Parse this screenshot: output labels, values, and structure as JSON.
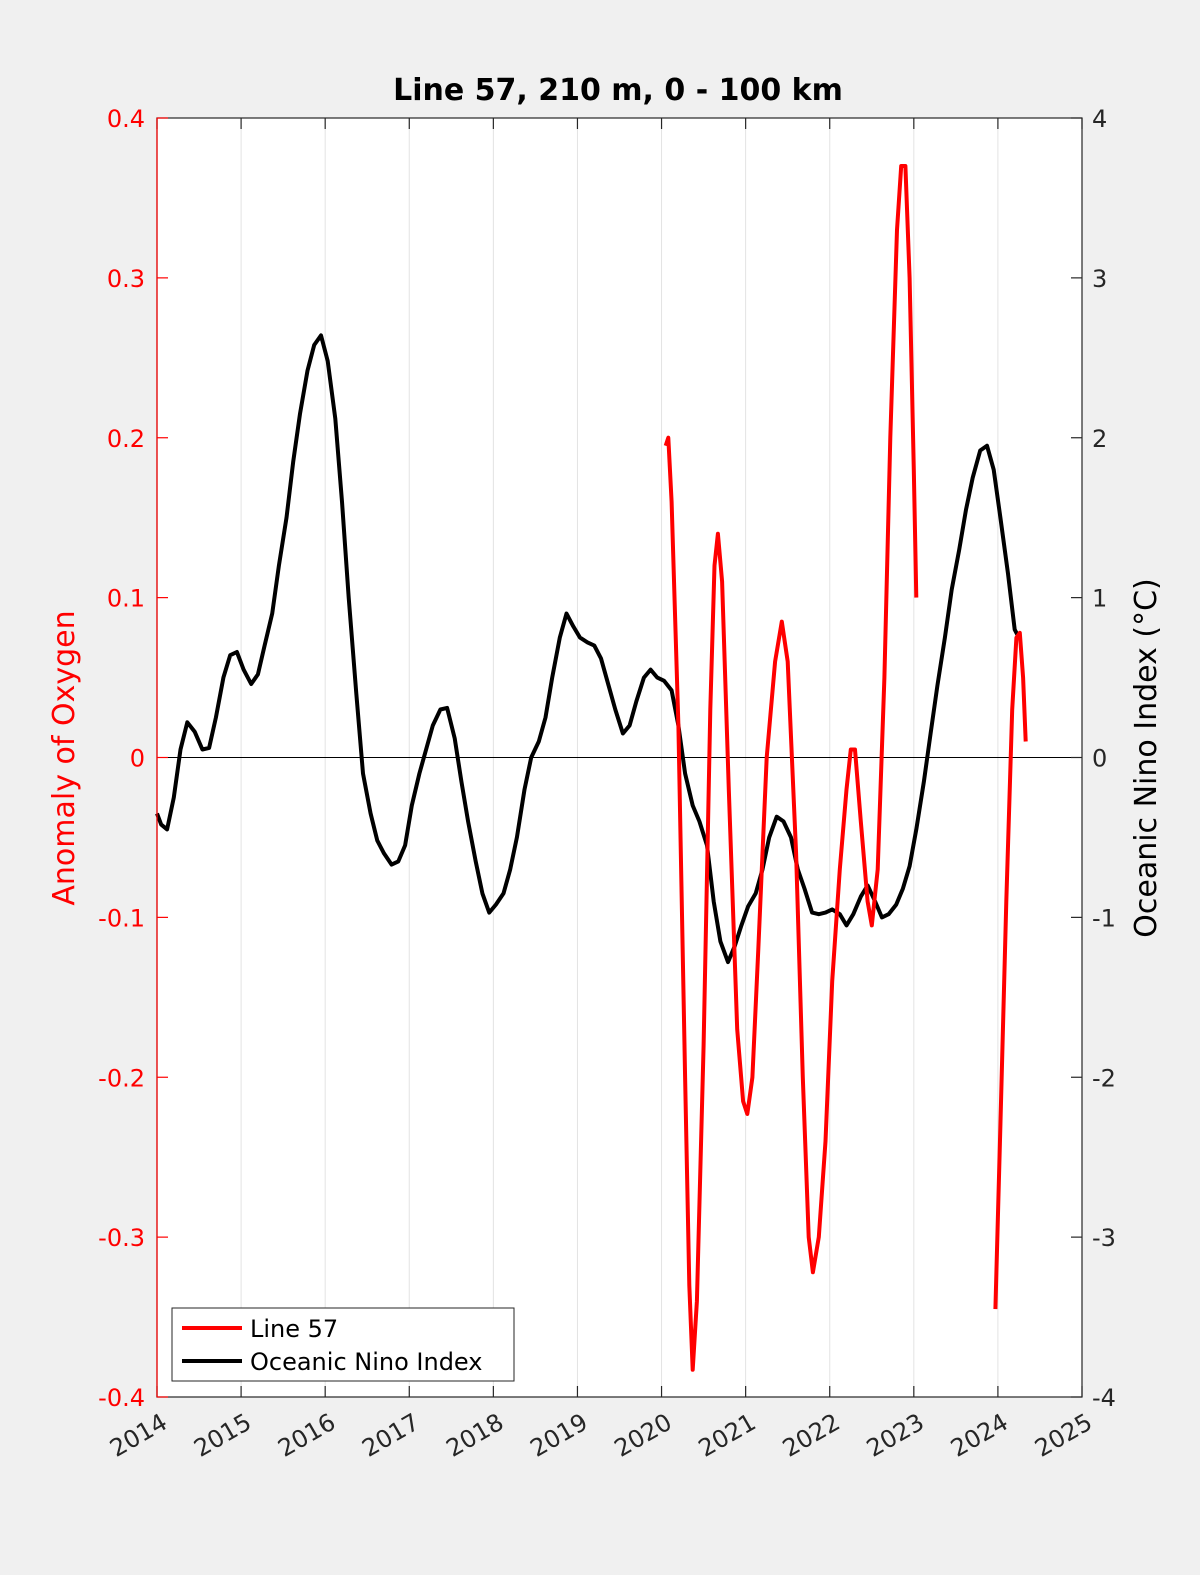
{
  "chart_data": {
    "type": "line",
    "title": "Line 57, 210 m, 0 - 100 km",
    "ylabel_left": "Anomaly of Oxygen",
    "ylabel_right": "Oceanic Nino Index (°C)",
    "xlim": [
      2014,
      2025
    ],
    "ylim_left": [
      -0.4,
      0.4
    ],
    "ylim_right": [
      -4,
      4
    ],
    "x_ticks": [
      "2014",
      "2015",
      "2016",
      "2017",
      "2018",
      "2019",
      "2020",
      "2021",
      "2022",
      "2023",
      "2024",
      "2025"
    ],
    "y_ticks_left": [
      "-0.4",
      "-0.3",
      "-0.2",
      "-0.1",
      "0",
      "0.1",
      "0.2",
      "0.3",
      "0.4"
    ],
    "y_ticks_right": [
      "-4",
      "-3",
      "-2",
      "-1",
      "0",
      "1",
      "2",
      "3",
      "4"
    ],
    "x_grid": true,
    "zero_line": true,
    "legend_position": "bottom-left",
    "colors": {
      "line57": "#ff0000",
      "oni": "#000000"
    },
    "series": [
      {
        "name": "Line 57",
        "axis": "left",
        "segments": [
          [
            [
              2020.05,
              0.195
            ],
            [
              2020.08,
              0.2
            ],
            [
              2020.12,
              0.16
            ],
            [
              2020.2,
              0.02
            ],
            [
              2020.28,
              -0.2
            ],
            [
              2020.33,
              -0.33
            ],
            [
              2020.37,
              -0.383
            ],
            [
              2020.42,
              -0.34
            ],
            [
              2020.5,
              -0.18
            ],
            [
              2020.58,
              0.03
            ],
            [
              2020.63,
              0.12
            ],
            [
              2020.67,
              0.14
            ],
            [
              2020.72,
              0.11
            ],
            [
              2020.8,
              -0.02
            ],
            [
              2020.9,
              -0.17
            ],
            [
              2020.97,
              -0.215
            ],
            [
              2021.02,
              -0.223
            ],
            [
              2021.08,
              -0.2
            ],
            [
              2021.15,
              -0.12
            ],
            [
              2021.25,
              0.0
            ],
            [
              2021.35,
              0.06
            ],
            [
              2021.43,
              0.085
            ],
            [
              2021.5,
              0.06
            ],
            [
              2021.6,
              -0.06
            ],
            [
              2021.68,
              -0.2
            ],
            [
              2021.75,
              -0.3
            ],
            [
              2021.8,
              -0.322
            ],
            [
              2021.87,
              -0.3
            ],
            [
              2021.95,
              -0.24
            ],
            [
              2022.03,
              -0.14
            ],
            [
              2022.12,
              -0.07
            ],
            [
              2022.2,
              -0.02
            ],
            [
              2022.25,
              0.005
            ],
            [
              2022.3,
              0.005
            ],
            [
              2022.37,
              -0.04
            ],
            [
              2022.45,
              -0.09
            ],
            [
              2022.5,
              -0.105
            ],
            [
              2022.57,
              -0.07
            ],
            [
              2022.65,
              0.05
            ],
            [
              2022.72,
              0.2
            ],
            [
              2022.8,
              0.33
            ],
            [
              2022.85,
              0.37
            ],
            [
              2022.9,
              0.37
            ],
            [
              2022.95,
              0.3
            ],
            [
              2023.0,
              0.18
            ],
            [
              2023.03,
              0.1
            ]
          ],
          [
            [
              2023.97,
              -0.345
            ],
            [
              2024.03,
              -0.23
            ],
            [
              2024.1,
              -0.09
            ],
            [
              2024.17,
              0.03
            ],
            [
              2024.22,
              0.075
            ],
            [
              2024.26,
              0.078
            ],
            [
              2024.3,
              0.05
            ],
            [
              2024.33,
              0.01
            ]
          ]
        ]
      },
      {
        "name": "Oceanic Nino Index",
        "axis": "right",
        "segments": [
          [
            [
              2014.0,
              -0.35
            ],
            [
              2014.05,
              -0.42
            ],
            [
              2014.12,
              -0.45
            ],
            [
              2014.2,
              -0.25
            ],
            [
              2014.28,
              0.05
            ],
            [
              2014.36,
              0.22
            ],
            [
              2014.45,
              0.16
            ],
            [
              2014.54,
              0.05
            ],
            [
              2014.62,
              0.06
            ],
            [
              2014.7,
              0.25
            ],
            [
              2014.79,
              0.5
            ],
            [
              2014.87,
              0.64
            ],
            [
              2014.95,
              0.66
            ],
            [
              2015.03,
              0.55
            ],
            [
              2015.12,
              0.46
            ],
            [
              2015.2,
              0.52
            ],
            [
              2015.28,
              0.7
            ],
            [
              2015.37,
              0.9
            ],
            [
              2015.45,
              1.2
            ],
            [
              2015.54,
              1.5
            ],
            [
              2015.62,
              1.85
            ],
            [
              2015.7,
              2.15
            ],
            [
              2015.79,
              2.42
            ],
            [
              2015.87,
              2.58
            ],
            [
              2015.95,
              2.64
            ],
            [
              2016.03,
              2.48
            ],
            [
              2016.12,
              2.12
            ],
            [
              2016.2,
              1.6
            ],
            [
              2016.28,
              1.0
            ],
            [
              2016.37,
              0.4
            ],
            [
              2016.45,
              -0.1
            ],
            [
              2016.54,
              -0.35
            ],
            [
              2016.62,
              -0.52
            ],
            [
              2016.7,
              -0.6
            ],
            [
              2016.79,
              -0.67
            ],
            [
              2016.87,
              -0.65
            ],
            [
              2016.95,
              -0.55
            ],
            [
              2017.03,
              -0.3
            ],
            [
              2017.12,
              -0.1
            ],
            [
              2017.2,
              0.05
            ],
            [
              2017.28,
              0.2
            ],
            [
              2017.37,
              0.3
            ],
            [
              2017.45,
              0.31
            ],
            [
              2017.54,
              0.12
            ],
            [
              2017.62,
              -0.15
            ],
            [
              2017.7,
              -0.4
            ],
            [
              2017.79,
              -0.65
            ],
            [
              2017.87,
              -0.85
            ],
            [
              2017.95,
              -0.97
            ],
            [
              2018.03,
              -0.92
            ],
            [
              2018.12,
              -0.85
            ],
            [
              2018.2,
              -0.7
            ],
            [
              2018.28,
              -0.5
            ],
            [
              2018.37,
              -0.2
            ],
            [
              2018.45,
              0.0
            ],
            [
              2018.54,
              0.1
            ],
            [
              2018.62,
              0.25
            ],
            [
              2018.7,
              0.5
            ],
            [
              2018.79,
              0.75
            ],
            [
              2018.87,
              0.9
            ],
            [
              2018.95,
              0.82
            ],
            [
              2019.03,
              0.75
            ],
            [
              2019.12,
              0.72
            ],
            [
              2019.2,
              0.7
            ],
            [
              2019.28,
              0.62
            ],
            [
              2019.37,
              0.45
            ],
            [
              2019.45,
              0.3
            ],
            [
              2019.54,
              0.15
            ],
            [
              2019.62,
              0.2
            ],
            [
              2019.7,
              0.35
            ],
            [
              2019.79,
              0.5
            ],
            [
              2019.87,
              0.55
            ],
            [
              2019.95,
              0.5
            ],
            [
              2020.03,
              0.48
            ],
            [
              2020.12,
              0.42
            ],
            [
              2020.2,
              0.2
            ],
            [
              2020.28,
              -0.1
            ],
            [
              2020.37,
              -0.3
            ],
            [
              2020.45,
              -0.4
            ],
            [
              2020.54,
              -0.55
            ],
            [
              2020.62,
              -0.9
            ],
            [
              2020.7,
              -1.15
            ],
            [
              2020.79,
              -1.28
            ],
            [
              2020.87,
              -1.18
            ],
            [
              2020.95,
              -1.05
            ],
            [
              2021.03,
              -0.93
            ],
            [
              2021.12,
              -0.85
            ],
            [
              2021.2,
              -0.7
            ],
            [
              2021.28,
              -0.5
            ],
            [
              2021.37,
              -0.37
            ],
            [
              2021.45,
              -0.4
            ],
            [
              2021.54,
              -0.5
            ],
            [
              2021.62,
              -0.7
            ],
            [
              2021.7,
              -0.82
            ],
            [
              2021.79,
              -0.97
            ],
            [
              2021.87,
              -0.98
            ],
            [
              2021.95,
              -0.97
            ],
            [
              2022.03,
              -0.95
            ],
            [
              2022.12,
              -0.98
            ],
            [
              2022.2,
              -1.05
            ],
            [
              2022.28,
              -0.98
            ],
            [
              2022.37,
              -0.87
            ],
            [
              2022.45,
              -0.8
            ],
            [
              2022.54,
              -0.9
            ],
            [
              2022.62,
              -1.0
            ],
            [
              2022.7,
              -0.98
            ],
            [
              2022.79,
              -0.92
            ],
            [
              2022.87,
              -0.82
            ],
            [
              2022.95,
              -0.68
            ],
            [
              2023.03,
              -0.45
            ],
            [
              2023.12,
              -0.15
            ],
            [
              2023.2,
              0.15
            ],
            [
              2023.28,
              0.45
            ],
            [
              2023.37,
              0.75
            ],
            [
              2023.45,
              1.05
            ],
            [
              2023.54,
              1.3
            ],
            [
              2023.62,
              1.55
            ],
            [
              2023.7,
              1.75
            ],
            [
              2023.79,
              1.92
            ],
            [
              2023.87,
              1.95
            ],
            [
              2023.95,
              1.8
            ],
            [
              2024.03,
              1.5
            ],
            [
              2024.12,
              1.15
            ],
            [
              2024.2,
              0.8
            ],
            [
              2024.25,
              0.75
            ]
          ]
        ]
      }
    ]
  }
}
